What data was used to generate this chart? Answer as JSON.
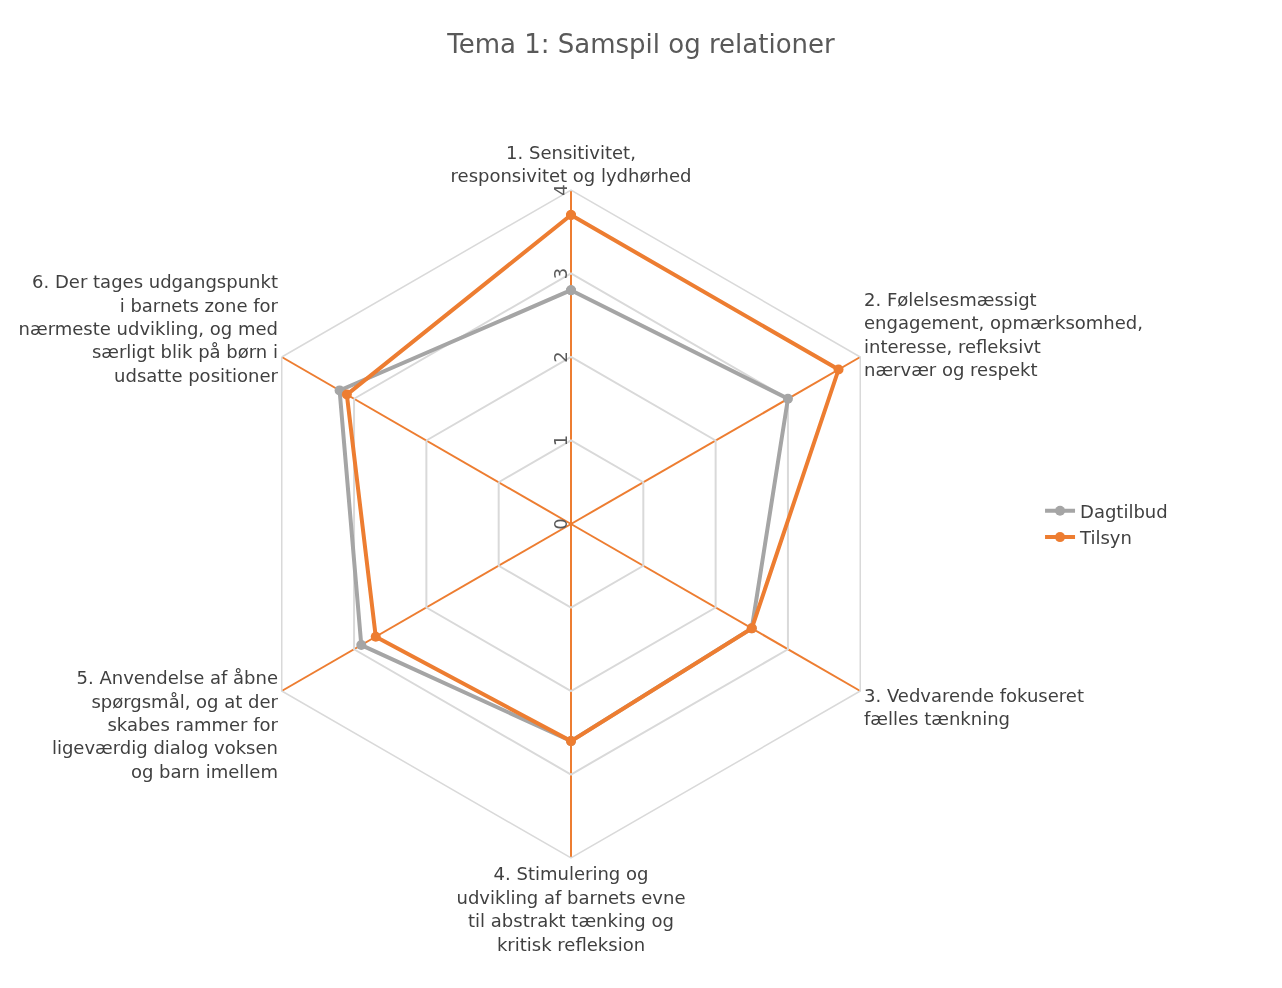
{
  "chart_data": {
    "type": "radar",
    "title": "Tema 1: Samspil og relationer",
    "categories": [
      "1. Sensitivitet, responsivitet og lydhørhed",
      "2. Følelsesmæssigt engagement, opmærksomhed, interesse, refleksivt nærvær og respekt",
      "3. Vedvarende fokuseret fælles tænkning",
      "4. Stimulering og udvikling af barnets evne til abstrakt tænking og kritisk refleksion",
      "5. Anvendelse af åbne spørgsmål, og at der skabes rammer for ligeværdig dialog voksen og barn imellem",
      "6. Der tages udgangspunkt i barnets zone for nærmeste udvikling, og med særligt blik på børn i udsatte positioner"
    ],
    "series": [
      {
        "name": "Dagtilbud",
        "color": "#a5a5a5",
        "values": [
          2.8,
          3.0,
          2.5,
          2.6,
          2.9,
          3.2
        ]
      },
      {
        "name": "Tilsyn",
        "color": "#ed7d31",
        "values": [
          3.7,
          3.7,
          2.5,
          2.6,
          2.7,
          3.1
        ]
      }
    ],
    "ylim": [
      0,
      4
    ],
    "yticks": [
      0,
      1,
      2,
      3,
      4
    ],
    "grid": true,
    "legend": "right",
    "marker": "circle",
    "line_style": "solid"
  }
}
